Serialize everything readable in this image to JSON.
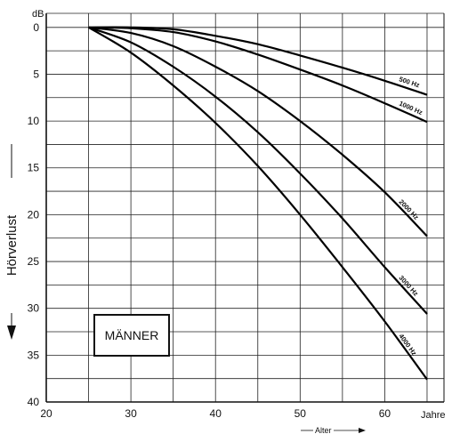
{
  "chart_data": {
    "type": "line",
    "title": "",
    "xlabel": "Alter",
    "ylabel": "Hörverlust",
    "y_unit": "dB",
    "x_unit": "Jahre",
    "xlim": [
      20,
      67
    ],
    "ylim": [
      40,
      0
    ],
    "x_ticks": [
      20,
      30,
      40,
      50,
      60
    ],
    "y_ticks": [
      0,
      5,
      10,
      15,
      20,
      25,
      30,
      35,
      40
    ],
    "grid": true,
    "annotation": "MÄNNER",
    "series": [
      {
        "name": "500 Hz",
        "x": [
          25,
          30,
          35,
          40,
          45,
          50,
          55,
          60,
          65
        ],
        "y": [
          0,
          0,
          0.2,
          0.9,
          1.8,
          3.0,
          4.3,
          5.7,
          7.2
        ]
      },
      {
        "name": "1000 Hz",
        "x": [
          25,
          30,
          35,
          40,
          45,
          50,
          55,
          60,
          65
        ],
        "y": [
          0,
          0.1,
          0.5,
          1.5,
          2.9,
          4.5,
          6.2,
          8.1,
          10.1
        ]
      },
      {
        "name": "2000 Hz",
        "x": [
          25,
          30,
          35,
          40,
          45,
          50,
          55,
          60,
          65
        ],
        "y": [
          0,
          0.6,
          2.0,
          4.2,
          6.8,
          10.0,
          13.6,
          17.6,
          22.3
        ]
      },
      {
        "name": "3000 Hz",
        "x": [
          25,
          30,
          35,
          40,
          45,
          50,
          55,
          60,
          65
        ],
        "y": [
          0,
          1.6,
          4.2,
          7.4,
          11.2,
          15.6,
          20.4,
          25.6,
          30.6
        ]
      },
      {
        "name": "4000 Hz",
        "x": [
          25,
          30,
          35,
          40,
          45,
          50,
          55,
          60,
          65
        ],
        "y": [
          0,
          2.7,
          6.2,
          10.2,
          14.8,
          20.0,
          25.6,
          31.4,
          37.6
        ]
      }
    ]
  }
}
